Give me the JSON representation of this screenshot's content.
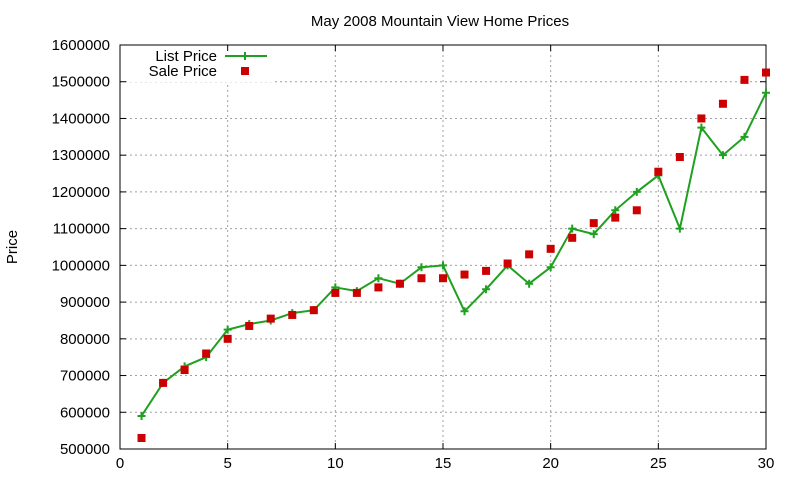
{
  "chart_data": {
    "type": "line",
    "title": "May 2008 Mountain View Home Prices",
    "xlabel": "",
    "ylabel": "Price",
    "xlim": [
      0,
      30
    ],
    "ylim": [
      500000,
      1600000
    ],
    "xticks": [
      "0",
      "5",
      "10",
      "15",
      "20",
      "25",
      "30"
    ],
    "yticks": [
      "500000",
      "600000",
      "700000",
      "800000",
      "900000",
      "1000000",
      "1100000",
      "1200000",
      "1300000",
      "1400000",
      "1500000",
      "1600000"
    ],
    "grid": true,
    "legend_position": "top-left",
    "x": [
      1,
      2,
      3,
      4,
      5,
      6,
      7,
      8,
      9,
      10,
      11,
      12,
      13,
      14,
      15,
      16,
      17,
      18,
      19,
      20,
      21,
      22,
      23,
      24,
      25,
      26,
      27,
      28,
      29,
      30
    ],
    "series": [
      {
        "name": "List Price",
        "style": "line-with-plus-markers",
        "color": "#20a020",
        "values": [
          590000,
          680000,
          725000,
          750000,
          825000,
          840000,
          850000,
          870000,
          878000,
          940000,
          930000,
          965000,
          950000,
          995000,
          1000000,
          875000,
          935000,
          1000000,
          950000,
          995000,
          1100000,
          1085000,
          1150000,
          1200000,
          1245000,
          1100000,
          1375000,
          1300000,
          1350000,
          1470000
        ]
      },
      {
        "name": "Sale Price",
        "style": "square-markers",
        "color": "#cc0000",
        "values": [
          530000,
          680000,
          715000,
          760000,
          800000,
          835000,
          855000,
          865000,
          878000,
          925000,
          925000,
          940000,
          950000,
          965000,
          965000,
          975000,
          985000,
          1005000,
          1030000,
          1045000,
          1075000,
          1115000,
          1130000,
          1150000,
          1255000,
          1295000,
          1400000,
          1440000,
          1505000,
          1525000
        ]
      }
    ]
  }
}
